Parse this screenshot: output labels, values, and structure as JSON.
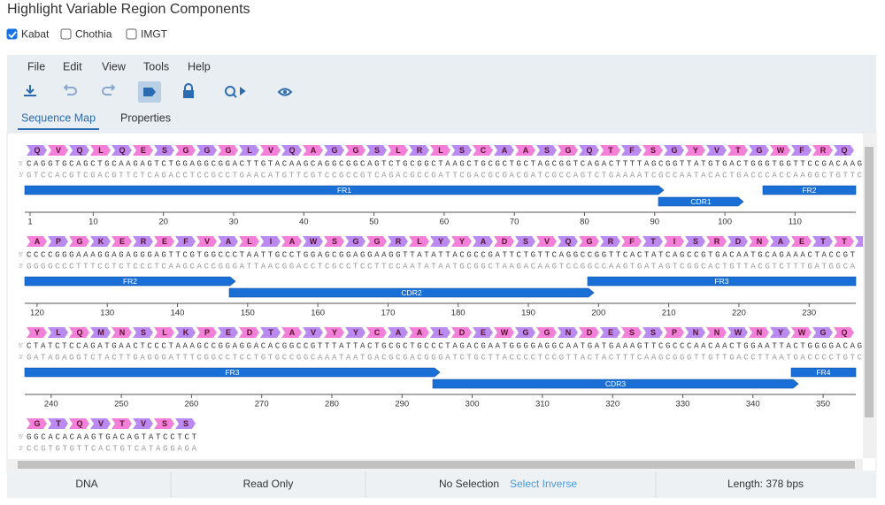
{
  "title": "Highlight Variable Region Components",
  "checkboxes": [
    {
      "label": "Kabat",
      "checked": true
    },
    {
      "label": "Chothia",
      "checked": false
    },
    {
      "label": "IMGT",
      "checked": false
    }
  ],
  "menu": [
    "File",
    "Edit",
    "View",
    "Tools",
    "Help"
  ],
  "tabs": [
    "Sequence Map",
    "Properties"
  ],
  "sequence_map": {
    "five_prime": "5'",
    "three_prime": "3'",
    "rows": [
      {
        "amino_acids": [
          "Q",
          "V",
          "Q",
          "L",
          "Q",
          "E",
          "S",
          "G",
          "G",
          "G",
          "L",
          "V",
          "Q",
          "A",
          "G",
          "G",
          "S",
          "L",
          "R",
          "L",
          "S",
          "C",
          "A",
          "A",
          "S",
          "G",
          "Q",
          "T",
          "F",
          "S",
          "G",
          "Y",
          "V",
          "T",
          "G",
          "W",
          "F",
          "R",
          "Q"
        ],
        "top_strand": "CAGGTGCAGCTGCAAGAGTCTGGAGGCGGACTTGTACAAGCAGGCGGCAGTCTGCGGCTAAGCTGCGCTGCTAGCGGTCAGACTTTTAGCGGTTATGTGACTGGGTGGTTCCGACAAG",
        "bottom_strand": "GTCCACGTCGACGTTCTCAGACCTCCGCCTGAACATGTTCGTCCGCCGTCAGACGCCGATTCGACGCGACGATCGCCAGTCTGAAAATCGCCAATACACTGACCCACCAAGGCTGTTC",
        "features": [
          "FR1",
          "CDR1",
          "FR2"
        ],
        "ruler": [
          1,
          10,
          20,
          30,
          40,
          50,
          60,
          70,
          80,
          90,
          100,
          110
        ]
      },
      {
        "amino_acids": [
          "A",
          "P",
          "G",
          "K",
          "E",
          "R",
          "E",
          "F",
          "V",
          "A",
          "L",
          "I",
          "A",
          "W",
          "S",
          "G",
          "G",
          "R",
          "L",
          "Y",
          "Y",
          "A",
          "D",
          "S",
          "V",
          "Q",
          "G",
          "R",
          "F",
          "T",
          "I",
          "S",
          "R",
          "D",
          "N",
          "A",
          "E",
          "T",
          "T",
          "V"
        ],
        "top_strand": "CCCCGGGAAAGGAGAGGGAGTTCGTGGCCCTAATTGCCTGGAGCGGAGGAAGGTTATATTACGCCGATTCTGTTCAGGCCGGTTCACTATCAGCCGTGACAATGCAGAAACTACCGT",
        "bottom_strand": "GGGGCCCTTTCCTCTCCCTCAAGCACCGGGATTAACGGACCTCGCCTCCTTCCAATATAATGCGGCTAAGACAAGTCCGGCCAAGTGATAGTCGGCACTGTTACGTCTTTGATGGCA",
        "features": [
          "FR2",
          "CDR2",
          "FR3"
        ],
        "ruler": [
          120,
          130,
          140,
          150,
          160,
          170,
          180,
          190,
          200,
          210,
          220,
          230
        ]
      },
      {
        "amino_acids": [
          "Y",
          "L",
          "Q",
          "M",
          "N",
          "S",
          "L",
          "K",
          "P",
          "E",
          "D",
          "T",
          "A",
          "V",
          "Y",
          "Y",
          "C",
          "A",
          "A",
          "L",
          "D",
          "E",
          "W",
          "G",
          "G",
          "N",
          "D",
          "E",
          "S",
          "S",
          "P",
          "N",
          "N",
          "W",
          "N",
          "Y",
          "W",
          "G",
          "Q"
        ],
        "top_strand": "CTATCTCCAGATGAACTCCCTAAAGCCGGAGGACACGGCCGTTTATTACTGCGCTGCCCTAGACGAATGGGGAGGCAATGATGAAAGTTCGCCCAACAACTGGAATTACTGGGGACAG",
        "bottom_strand": "GATAGAGGTCTACTTGAGGGATTTCGGCCTCCTGTGCCGGCAAATAATGACGCGACGGGATCTGCTTACCCCTCCGTTACTACTTTCAAGCGGGTTGTTGACCTTAATGACCCCTGTC",
        "features": [
          "FR3",
          "CDR3",
          "FR4"
        ],
        "ruler": [
          240,
          250,
          260,
          270,
          280,
          290,
          300,
          310,
          320,
          330,
          340,
          350
        ]
      },
      {
        "amino_acids": [
          "G",
          "T",
          "Q",
          "V",
          "T",
          "V",
          "S",
          "S"
        ],
        "top_strand": "GGCACACAAGTGACAGTATCCTCT",
        "bottom_strand": "CCGTGTGTTCACTGTCATAGGAGA",
        "features": [],
        "ruler": []
      }
    ]
  },
  "status_bar": {
    "type": "DNA",
    "mode": "Read Only",
    "selection": "No Selection",
    "select_inverse": "Select Inverse",
    "length": "Length: 378 bps"
  }
}
